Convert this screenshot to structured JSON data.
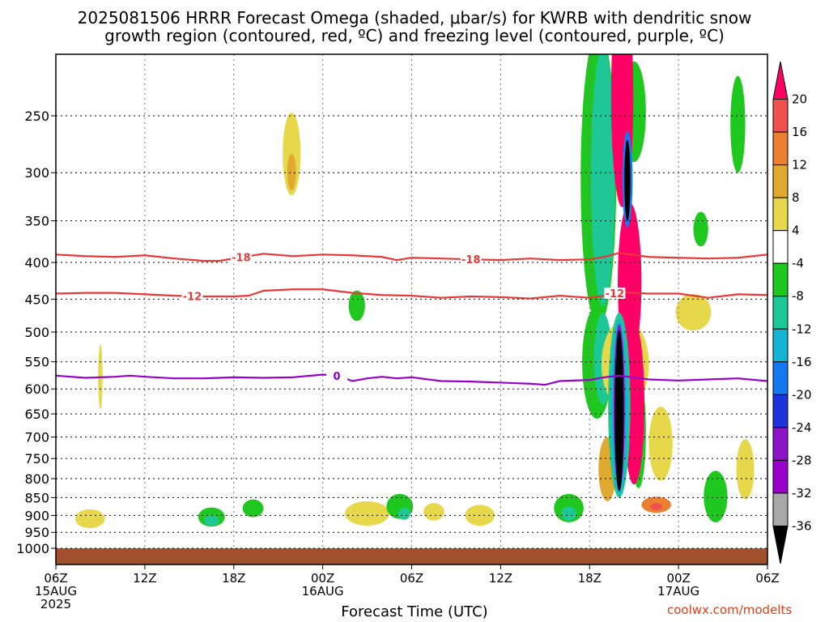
{
  "title_line1": "2025081506 HRRR Forecast Omega (shaded, μbar/s) for KWRB with dendritic snow",
  "title_line2": "growth region (contoured, red, ºC) and freezing level (contoured, purple, ºC)",
  "xlabel": "Forecast Time (UTC)",
  "watermark": "coolwx.com/modelts",
  "chart_data": {
    "type": "heatmap",
    "title": "2025081506 HRRR Forecast Omega (shaded, μbar/s) for KWRB with dendritic snow growth region (contoured, red, ºC) and freezing level (contoured, purple, ºC)",
    "xlabel": "Forecast Time (UTC)",
    "ylabel": "",
    "x_ticks": [
      {
        "hour": 0,
        "label": "06Z",
        "sub1": "15AUG",
        "sub2": "2025"
      },
      {
        "hour": 6,
        "label": "12Z",
        "sub1": "",
        "sub2": ""
      },
      {
        "hour": 12,
        "label": "18Z",
        "sub1": "",
        "sub2": ""
      },
      {
        "hour": 18,
        "label": "00Z",
        "sub1": "16AUG",
        "sub2": ""
      },
      {
        "hour": 24,
        "label": "06Z",
        "sub1": "",
        "sub2": ""
      },
      {
        "hour": 30,
        "label": "12Z",
        "sub1": "",
        "sub2": ""
      },
      {
        "hour": 36,
        "label": "18Z",
        "sub1": "",
        "sub2": ""
      },
      {
        "hour": 42,
        "label": "00Z",
        "sub1": "17AUG",
        "sub2": ""
      },
      {
        "hour": 48,
        "label": "06Z",
        "sub1": "",
        "sub2": ""
      }
    ],
    "xlim": [
      0,
      48
    ],
    "y_ticks": [
      250,
      300,
      350,
      400,
      450,
      500,
      550,
      600,
      650,
      700,
      750,
      800,
      850,
      900,
      950,
      1000
    ],
    "ylim_hPa": [
      200,
      1030
    ],
    "y_scale": "log-pressure",
    "grid": true,
    "colorbar": {
      "labels": [
        "20",
        "16",
        "12",
        "8",
        "4",
        "-4",
        "-8",
        "-12",
        "-16",
        "-20",
        "-24",
        "-28",
        "-32",
        "-36"
      ],
      "colors": [
        "#ff0066",
        "#f05050",
        "#ea8030",
        "#e0aa30",
        "#e6d84a",
        "#ffffff",
        "#1ec81e",
        "#1ec896",
        "#14b4d2",
        "#1478f0",
        "#1e32dc",
        "#8c14c8",
        "#9a00cc",
        "#a8a8a8",
        "#000000"
      ]
    },
    "omega_regions": [
      {
        "color": "#e6d84a",
        "x": 15.9,
        "p": 285,
        "w": 0.6,
        "dp": 75
      },
      {
        "color": "#e0aa30",
        "x": 15.9,
        "p": 300,
        "w": 0.3,
        "dp": 35
      },
      {
        "color": "#e6d84a",
        "x": 3.0,
        "p": 580,
        "w": 0.15,
        "dp": 120
      },
      {
        "color": "#e6d84a",
        "x": 2.3,
        "p": 910,
        "w": 1.0,
        "dp": 55
      },
      {
        "color": "#e6d84a",
        "x": 21.0,
        "p": 895,
        "w": 1.5,
        "dp": 70
      },
      {
        "color": "#e6d84a",
        "x": 25.5,
        "p": 890,
        "w": 0.7,
        "dp": 50
      },
      {
        "color": "#e6d84a",
        "x": 28.6,
        "p": 900,
        "w": 1.0,
        "dp": 60
      },
      {
        "color": "#e6d84a",
        "x": 40.8,
        "p": 720,
        "w": 0.8,
        "dp": 170
      },
      {
        "color": "#e6d84a",
        "x": 43.0,
        "p": 470,
        "w": 1.2,
        "dp": 55
      },
      {
        "color": "#e6d84a",
        "x": 46.5,
        "p": 780,
        "w": 0.6,
        "dp": 150
      },
      {
        "color": "#1ec81e",
        "x": 10.5,
        "p": 905,
        "w": 0.9,
        "dp": 55
      },
      {
        "color": "#1ec896",
        "x": 10.5,
        "p": 915,
        "w": 0.5,
        "dp": 30
      },
      {
        "color": "#1ec81e",
        "x": 13.3,
        "p": 880,
        "w": 0.7,
        "dp": 50
      },
      {
        "color": "#1ec81e",
        "x": 23.2,
        "p": 875,
        "w": 0.9,
        "dp": 70
      },
      {
        "color": "#1ec896",
        "x": 23.5,
        "p": 895,
        "w": 0.4,
        "dp": 35
      },
      {
        "color": "#1ec81e",
        "x": 20.3,
        "p": 460,
        "w": 0.55,
        "dp": 45
      },
      {
        "color": "#1ec81e",
        "x": 34.6,
        "p": 880,
        "w": 1.0,
        "dp": 80
      },
      {
        "color": "#1ec896",
        "x": 34.6,
        "p": 895,
        "w": 0.5,
        "dp": 40
      },
      {
        "color": "#1ec81e",
        "x": 39.0,
        "p": 250,
        "w": 0.8,
        "dp": 80
      },
      {
        "color": "#1ec81e",
        "x": 43.5,
        "p": 360,
        "w": 0.5,
        "dp": 40
      },
      {
        "color": "#1ec81e",
        "x": 46.0,
        "p": 260,
        "w": 0.5,
        "dp": 80
      },
      {
        "color": "#1ec81e",
        "x": 39.3,
        "p": 700,
        "w": 0.5,
        "dp": 250
      },
      {
        "color": "#1ec81e",
        "x": 44.5,
        "p": 850,
        "w": 0.8,
        "dp": 140
      },
      {
        "color": "#1ec81e",
        "x": 36.6,
        "p": 340,
        "w": 1.2,
        "dp": 300
      },
      {
        "color": "#1ec896",
        "x": 36.9,
        "p": 330,
        "w": 0.8,
        "dp": 260
      },
      {
        "color": "#1ec81e",
        "x": 36.5,
        "p": 560,
        "w": 1.0,
        "dp": 200
      },
      {
        "color": "#1ec896",
        "x": 36.9,
        "p": 550,
        "w": 0.6,
        "dp": 160
      },
      {
        "color": "#ea8030",
        "x": 40.5,
        "p": 870,
        "w": 1.0,
        "dp": 45
      },
      {
        "color": "#f05050",
        "x": 40.5,
        "p": 875,
        "w": 0.4,
        "dp": 20
      },
      {
        "color": "#e0aa30",
        "x": 37.2,
        "p": 780,
        "w": 0.6,
        "dp": 160
      },
      {
        "color": "#e6d84a",
        "x": 38.4,
        "p": 560,
        "w": 1.6,
        "dp": 160
      },
      {
        "color": "#ff0066",
        "x": 38.7,
        "p": 440,
        "w": 0.8,
        "dp": 220
      },
      {
        "color": "#ff0066",
        "x": 38.2,
        "p": 250,
        "w": 0.75,
        "dp": 170
      },
      {
        "color": "#ff0066",
        "x": 39.0,
        "p": 650,
        "w": 0.7,
        "dp": 330
      },
      {
        "color": "#1ec896",
        "x": 38.0,
        "p": 660,
        "w": 0.75,
        "dp": 380
      },
      {
        "color": "#14b4d2",
        "x": 38.0,
        "p": 660,
        "w": 0.55,
        "dp": 360
      },
      {
        "color": "#8c14c8",
        "x": 38.0,
        "p": 660,
        "w": 0.38,
        "dp": 345
      },
      {
        "color": "#000000",
        "x": 38.0,
        "p": 665,
        "w": 0.3,
        "dp": 335
      },
      {
        "color": "#1478f0",
        "x": 38.55,
        "p": 310,
        "w": 0.35,
        "dp": 95
      },
      {
        "color": "#000000",
        "x": 38.55,
        "p": 310,
        "w": 0.2,
        "dp": 80
      }
    ],
    "dendritic_contours": [
      {
        "label": "-18",
        "color": "#e83838",
        "points": [
          [
            0,
            390
          ],
          [
            2,
            392
          ],
          [
            4,
            393
          ],
          [
            6,
            391
          ],
          [
            8,
            395
          ],
          [
            10,
            398
          ],
          [
            11,
            398
          ],
          [
            12,
            395
          ],
          [
            14,
            389
          ],
          [
            16,
            392
          ],
          [
            18,
            390
          ],
          [
            20,
            391
          ],
          [
            22,
            393
          ],
          [
            23,
            397
          ],
          [
            24,
            394
          ],
          [
            26,
            395
          ],
          [
            28,
            396
          ],
          [
            30,
            397
          ],
          [
            32,
            395
          ],
          [
            34,
            397
          ],
          [
            36,
            396
          ],
          [
            37,
            393
          ],
          [
            38,
            388
          ],
          [
            40,
            393
          ],
          [
            42,
            394
          ],
          [
            44,
            395
          ],
          [
            46,
            394
          ],
          [
            48,
            390
          ]
        ],
        "label_x": [
          12.5,
          28
        ]
      },
      {
        "label": "-12",
        "color": "#e83838",
        "points": [
          [
            0,
            442
          ],
          [
            2,
            441
          ],
          [
            4,
            441
          ],
          [
            6,
            443
          ],
          [
            8,
            445
          ],
          [
            10,
            446
          ],
          [
            12,
            446
          ],
          [
            13,
            445
          ],
          [
            14,
            438
          ],
          [
            16,
            436
          ],
          [
            18,
            436
          ],
          [
            20,
            441
          ],
          [
            22,
            444
          ],
          [
            24,
            445
          ],
          [
            26,
            448
          ],
          [
            28,
            446
          ],
          [
            30,
            447
          ],
          [
            32,
            449
          ],
          [
            34,
            445
          ],
          [
            36,
            448
          ],
          [
            37,
            445
          ],
          [
            38,
            440
          ],
          [
            40,
            442
          ],
          [
            42,
            442
          ],
          [
            44,
            448
          ],
          [
            46,
            443
          ],
          [
            48,
            444
          ]
        ],
        "label_x": [
          9.2,
          37.7
        ]
      }
    ],
    "freezing_contour": {
      "label": "0",
      "color": "#9a00cc",
      "points": [
        [
          0,
          575
        ],
        [
          2,
          579
        ],
        [
          4,
          577
        ],
        [
          5,
          575
        ],
        [
          6,
          577
        ],
        [
          8,
          580
        ],
        [
          10,
          580
        ],
        [
          12,
          578
        ],
        [
          14,
          579
        ],
        [
          16,
          578
        ],
        [
          18,
          573
        ],
        [
          19,
          575
        ],
        [
          20,
          585
        ],
        [
          21,
          580
        ],
        [
          22,
          577
        ],
        [
          23,
          580
        ],
        [
          24,
          578
        ],
        [
          26,
          585
        ],
        [
          28,
          586
        ],
        [
          30,
          588
        ],
        [
          32,
          590
        ],
        [
          33,
          592
        ],
        [
          34,
          585
        ],
        [
          36,
          583
        ],
        [
          37,
          578
        ],
        [
          38,
          575
        ],
        [
          40,
          582
        ],
        [
          42,
          584
        ],
        [
          44,
          582
        ],
        [
          46,
          580
        ],
        [
          48,
          585
        ]
      ],
      "label_x": [
        18.95
      ]
    },
    "ground": {
      "color": "#a0522d",
      "p_top": 1000
    }
  }
}
